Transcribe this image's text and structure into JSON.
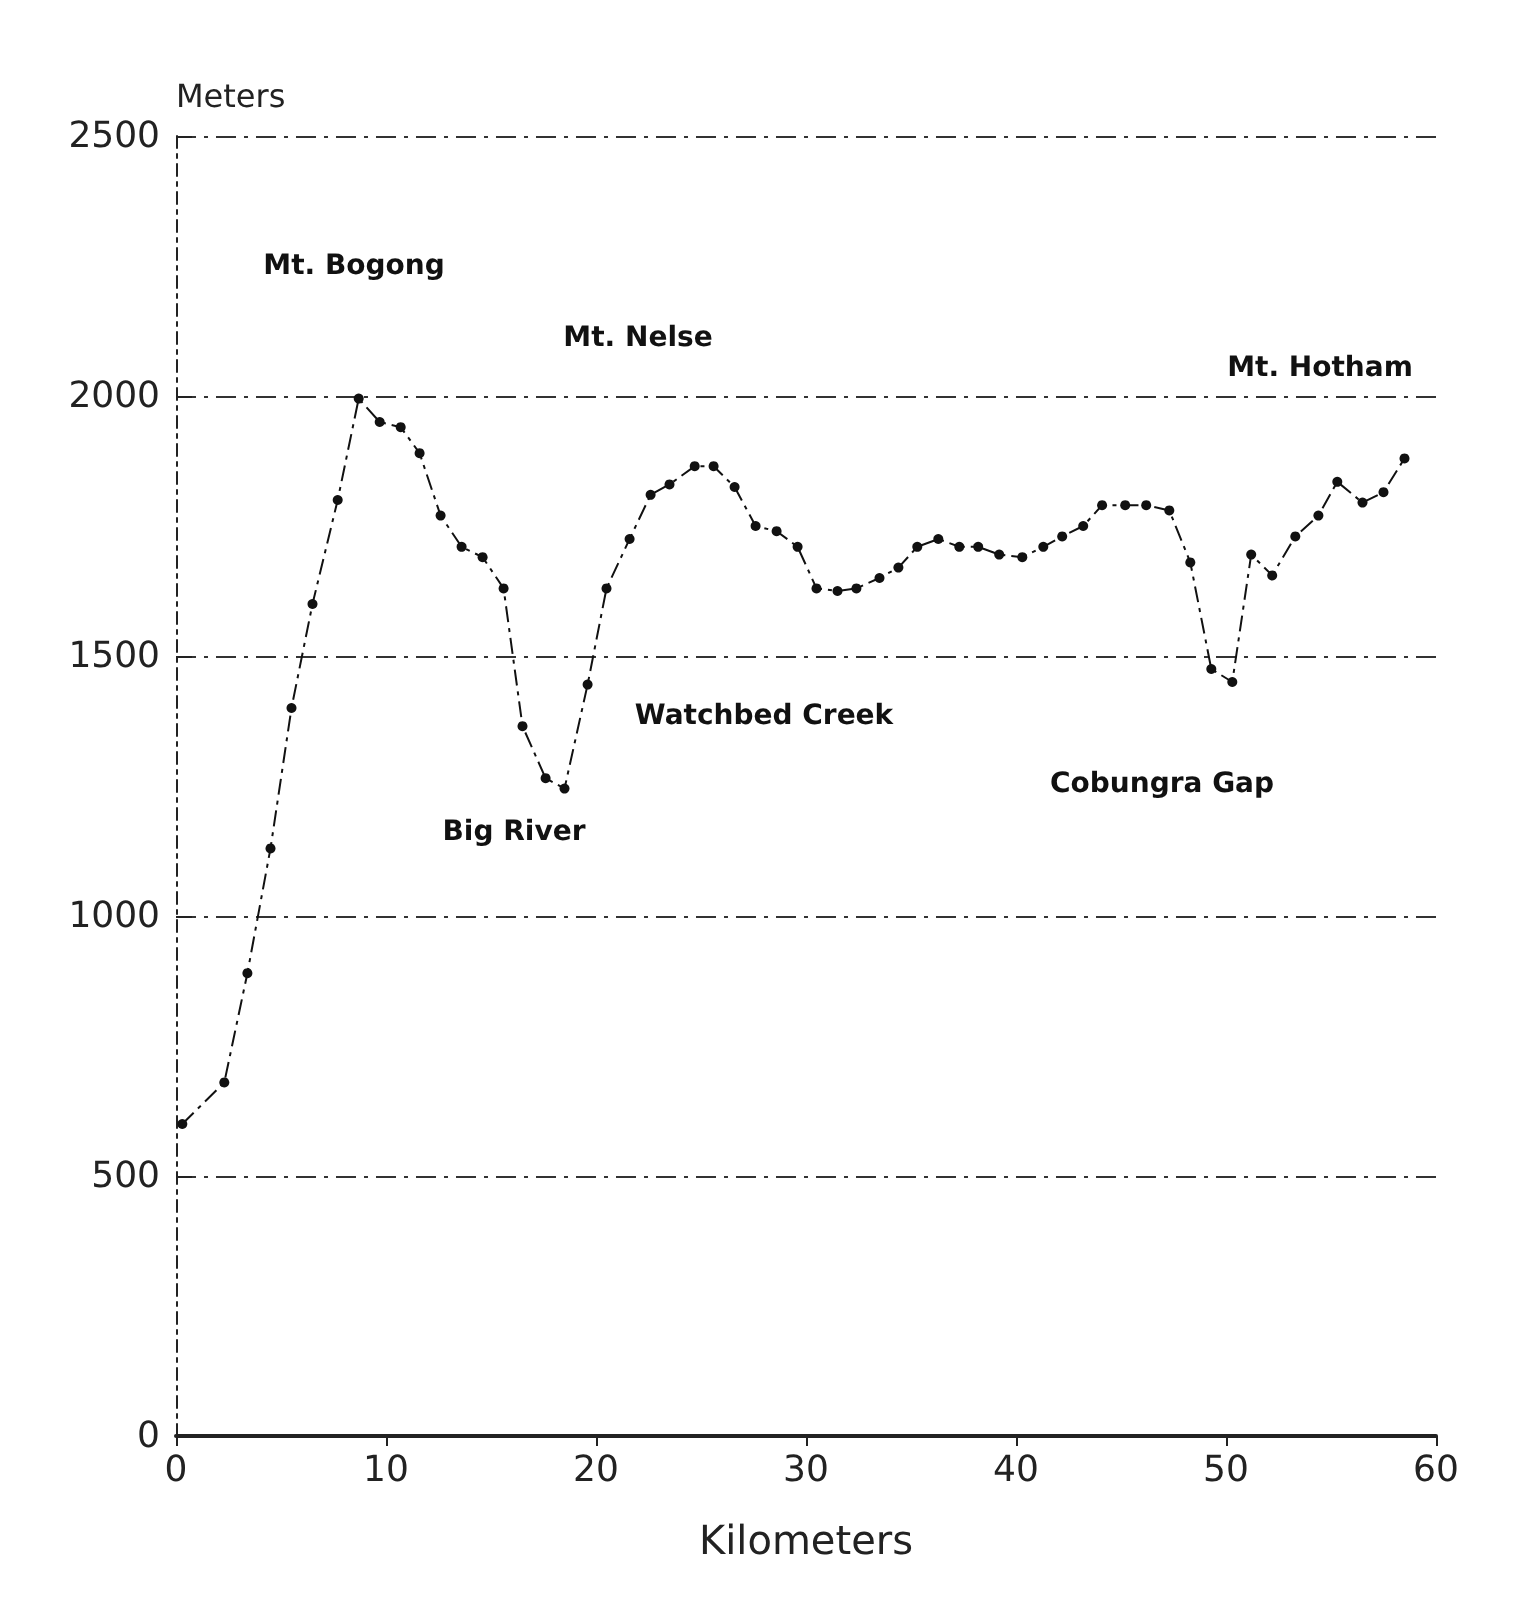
{
  "chart_data": {
    "type": "line",
    "xlabel": "Kilometers",
    "ylabel": "Meters",
    "x": [
      0.3,
      2.3,
      3.4,
      4.5,
      5.5,
      6.5,
      7.7,
      8.7,
      9.7,
      10.7,
      11.6,
      12.6,
      13.6,
      14.6,
      15.6,
      16.5,
      17.6,
      18.5,
      19.6,
      20.5,
      21.6,
      22.6,
      23.5,
      24.7,
      25.6,
      26.6,
      27.6,
      28.6,
      29.6,
      30.5,
      31.5,
      32.4,
      33.5,
      34.4,
      35.3,
      36.3,
      37.3,
      38.2,
      39.2,
      40.3,
      41.3,
      42.2,
      43.2,
      44.1,
      45.2,
      46.2,
      47.3,
      48.3,
      49.3,
      50.3,
      51.2,
      52.2,
      53.3,
      54.4,
      55.3,
      56.5,
      57.5,
      58.5
    ],
    "series": [
      {
        "color": "#111111",
        "values": [
          600,
          680,
          890,
          1130,
          1400,
          1600,
          1800,
          1995,
          1950,
          1940,
          1890,
          1770,
          1710,
          1690,
          1630,
          1365,
          1265,
          1245,
          1445,
          1630,
          1725,
          1810,
          1830,
          1865,
          1865,
          1825,
          1750,
          1740,
          1710,
          1630,
          1625,
          1630,
          1650,
          1670,
          1710,
          1725,
          1710,
          1710,
          1695,
          1690,
          1710,
          1730,
          1750,
          1790,
          1790,
          1790,
          1780,
          1680,
          1475,
          1450,
          1695,
          1655,
          1730,
          1770,
          1835,
          1795,
          1815,
          1880
        ]
      }
    ],
    "xlim": [
      0,
      60
    ],
    "xticks": [
      0,
      10,
      20,
      30,
      40,
      50,
      60
    ],
    "ylim": [
      0,
      2500
    ],
    "yticks": [
      0,
      500,
      1000,
      1500,
      2000,
      2500
    ],
    "grid": "y",
    "marker": "circle",
    "line_style": "dashed",
    "annotations": [
      "Mt. Bogong",
      "Mt. Nelse",
      "Mt. Hotham",
      "Big River",
      "Watchbed Creek",
      "Cobungra Gap"
    ]
  }
}
